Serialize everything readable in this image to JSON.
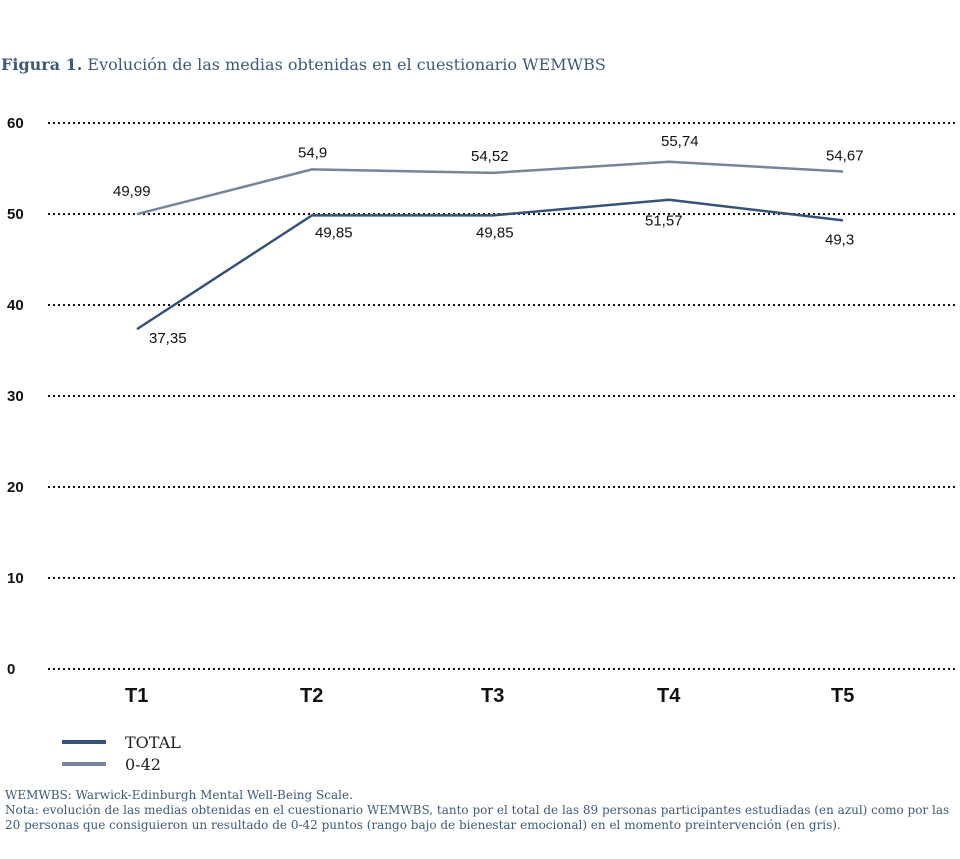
{
  "figure": {
    "label": "Figura 1.",
    "title": "Evolución de las medias obtenidas en el cuestionario WEMWBS"
  },
  "chart_data": {
    "type": "line",
    "title": "Evolución de las medias obtenidas en el cuestionario WEMWBS",
    "categories": [
      "T1",
      "T2",
      "T3",
      "T4",
      "T5"
    ],
    "ylim": [
      0,
      60
    ],
    "yticks": [
      "0",
      "10",
      "20",
      "30",
      "40",
      "50",
      "60"
    ],
    "grid": true,
    "legend_position": "bottom-left",
    "series": [
      {
        "name": "TOTAL",
        "color": "#34527a",
        "values": [
          37.35,
          49.85,
          49.85,
          51.57,
          49.3
        ],
        "labels": [
          "37,35",
          "49,85",
          "49,85",
          "51,57",
          "49,3"
        ]
      },
      {
        "name": "0-42",
        "color": "#75869a",
        "values": [
          49.99,
          54.9,
          54.52,
          55.74,
          54.67
        ],
        "labels": [
          "49,99",
          "54,9",
          "54,52",
          "55,74",
          "54,67"
        ]
      }
    ]
  },
  "notes": {
    "abbrev": "WEMWBS: Warwick-Edinburgh Mental Well-Being Scale.",
    "nota": "Nota: evolución de las medias obtenidas en el cuestionario WEMWBS, tanto por el total de las 89 personas participantes estudiadas (en azul) como por las 20 personas que consiguieron un resultado de 0-42 puntos (rango bajo de bienestar emocional) en el momento preintervención (en gris)."
  }
}
